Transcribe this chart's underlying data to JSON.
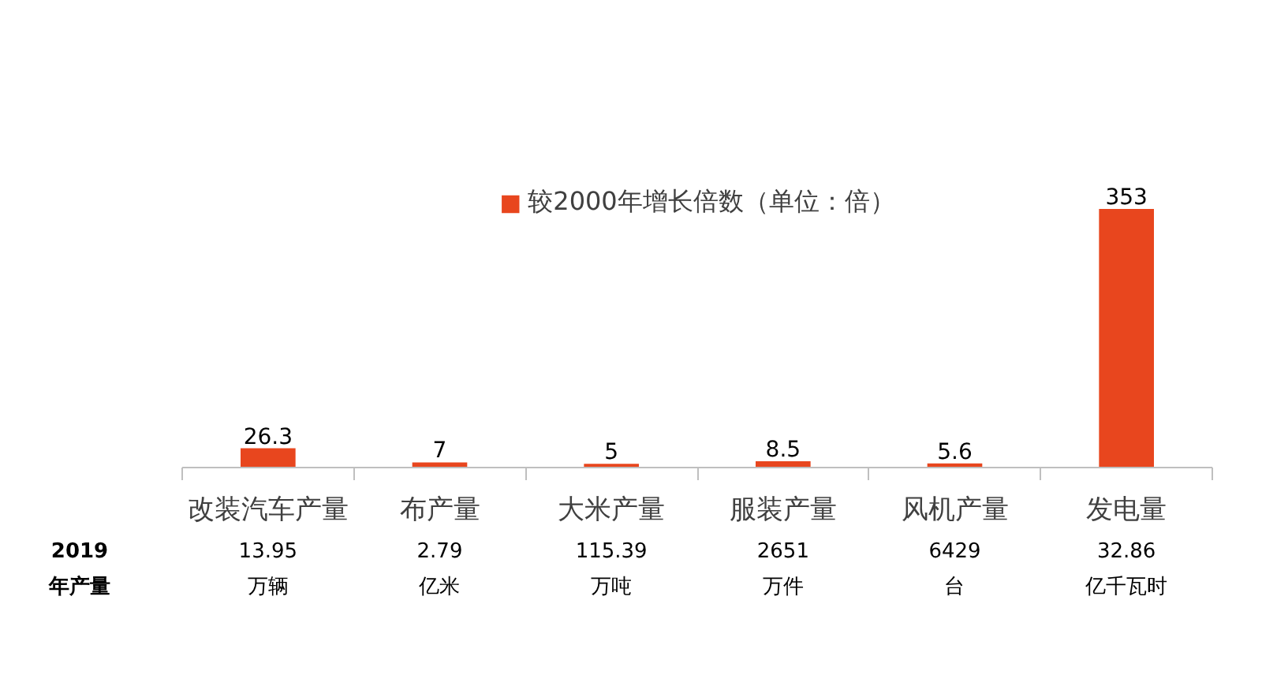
{
  "chart_data": {
    "type": "bar",
    "categories": [
      "改装汽车产量",
      "布产量",
      "大米产量",
      "服装产量",
      "风机产量",
      "发电量"
    ],
    "series": [
      {
        "name": "较2000年增长倍数（单位：倍）",
        "color": "#e8461e",
        "values": [
          26.3,
          7,
          5,
          8.5,
          5.6,
          353
        ]
      }
    ],
    "data_labels": true,
    "legend": "top",
    "tick_labels": "x",
    "annotations": [
      "2019\n年产量",
      "13.95\n万辆",
      "2.79\n亿米",
      "115.39\n万吨",
      "2651\n万件",
      "6429\n台",
      "32.86\n亿千瓦时"
    ]
  }
}
